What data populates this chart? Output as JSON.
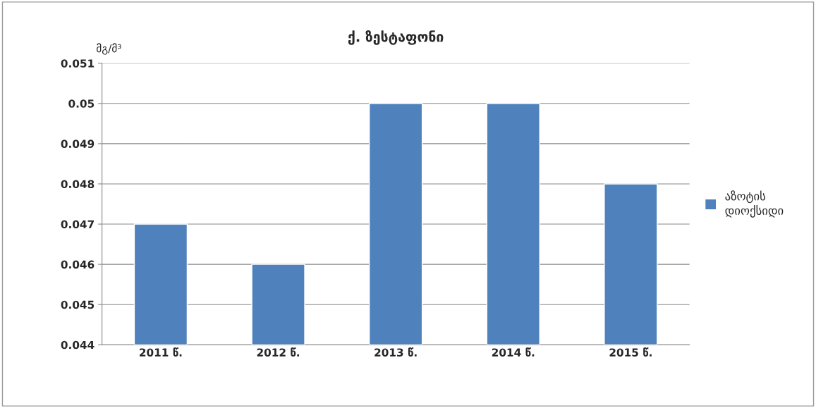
{
  "chart_data": {
    "type": "bar",
    "title": "ქ. ზესტაფონი",
    "ylabel": "მგ/მ³",
    "categories": [
      "2011 წ.",
      "2012 წ.",
      "2013 წ.",
      "2014 წ.",
      "2015 წ."
    ],
    "series": [
      {
        "name": "აზოტის დიოქსიდი",
        "color": "#4f81bd",
        "values": [
          0.047,
          0.046,
          0.05,
          0.05,
          0.048
        ]
      }
    ],
    "ylim": [
      0.044,
      0.051
    ],
    "yticks": [
      0.044,
      0.045,
      0.046,
      0.047,
      0.048,
      0.049,
      0.05,
      0.051
    ],
    "grid": "y",
    "legend": "right"
  }
}
